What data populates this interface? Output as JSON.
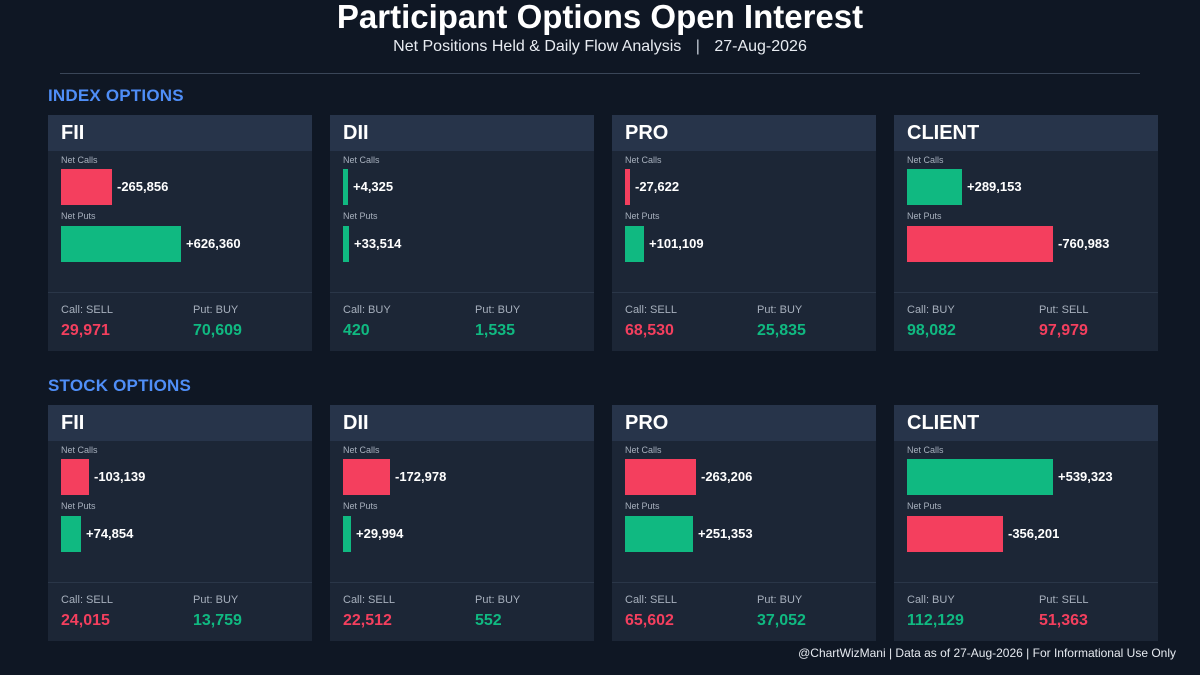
{
  "title": "Participant Options Open Interest",
  "subtitle_left": "Net Positions Held & Daily Flow Analysis",
  "subtitle_sep": "|",
  "subtitle_right": "27-Aug-2026",
  "footer": "@ChartWizMani | Data as of 27-Aug-2026 | For Informational Use Only",
  "colors": {
    "positive": "#10b981",
    "negative": "#f43f5e",
    "accent": "#4f8ef7"
  },
  "labels": {
    "net_calls": "Net Calls",
    "net_puts": "Net Puts"
  },
  "chart_data": [
    {
      "type": "bar",
      "title": "INDEX OPTIONS",
      "max_abs": 760983,
      "participants": [
        {
          "name": "FII",
          "net_calls": -265856,
          "net_calls_label": "-265,856",
          "net_puts": 626360,
          "net_puts_label": "+626,360",
          "call_flow_label": "Call: SELL",
          "call_flow_value": "29,971",
          "call_flow_dir": "red",
          "put_flow_label": "Put: BUY",
          "put_flow_value": "70,609",
          "put_flow_dir": "green"
        },
        {
          "name": "DII",
          "net_calls": 4325,
          "net_calls_label": "+4,325",
          "net_puts": 33514,
          "net_puts_label": "+33,514",
          "call_flow_label": "Call: BUY",
          "call_flow_value": "420",
          "call_flow_dir": "green",
          "put_flow_label": "Put: BUY",
          "put_flow_value": "1,535",
          "put_flow_dir": "green"
        },
        {
          "name": "PRO",
          "net_calls": -27622,
          "net_calls_label": "-27,622",
          "net_puts": 101109,
          "net_puts_label": "+101,109",
          "call_flow_label": "Call: SELL",
          "call_flow_value": "68,530",
          "call_flow_dir": "red",
          "put_flow_label": "Put: BUY",
          "put_flow_value": "25,835",
          "put_flow_dir": "green"
        },
        {
          "name": "CLIENT",
          "net_calls": 289153,
          "net_calls_label": "+289,153",
          "net_puts": -760983,
          "net_puts_label": "-760,983",
          "call_flow_label": "Call: BUY",
          "call_flow_value": "98,082",
          "call_flow_dir": "green",
          "put_flow_label": "Put: SELL",
          "put_flow_value": "97,979",
          "put_flow_dir": "red"
        }
      ]
    },
    {
      "type": "bar",
      "title": "STOCK OPTIONS",
      "max_abs": 539323,
      "participants": [
        {
          "name": "FII",
          "net_calls": -103139,
          "net_calls_label": "-103,139",
          "net_puts": 74854,
          "net_puts_label": "+74,854",
          "call_flow_label": "Call: SELL",
          "call_flow_value": "24,015",
          "call_flow_dir": "red",
          "put_flow_label": "Put: BUY",
          "put_flow_value": "13,759",
          "put_flow_dir": "green"
        },
        {
          "name": "DII",
          "net_calls": -172978,
          "net_calls_label": "-172,978",
          "net_puts": 29994,
          "net_puts_label": "+29,994",
          "call_flow_label": "Call: SELL",
          "call_flow_value": "22,512",
          "call_flow_dir": "red",
          "put_flow_label": "Put: BUY",
          "put_flow_value": "552",
          "put_flow_dir": "green"
        },
        {
          "name": "PRO",
          "net_calls": -263206,
          "net_calls_label": "-263,206",
          "net_puts": 251353,
          "net_puts_label": "+251,353",
          "call_flow_label": "Call: SELL",
          "call_flow_value": "65,602",
          "call_flow_dir": "red",
          "put_flow_label": "Put: BUY",
          "put_flow_value": "37,052",
          "put_flow_dir": "green"
        },
        {
          "name": "CLIENT",
          "net_calls": 539323,
          "net_calls_label": "+539,323",
          "net_puts": -356201,
          "net_puts_label": "-356,201",
          "call_flow_label": "Call: BUY",
          "call_flow_value": "112,129",
          "call_flow_dir": "green",
          "put_flow_label": "Put: SELL",
          "put_flow_value": "51,363",
          "put_flow_dir": "red"
        }
      ]
    }
  ]
}
